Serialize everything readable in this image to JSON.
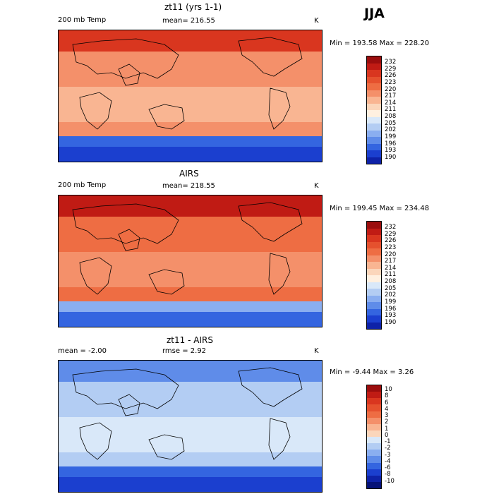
{
  "season": "JJA",
  "panels": [
    {
      "title": "zt11 (yrs 1-1)",
      "left_label": "200 mb Temp",
      "center_label": "mean= 216.55",
      "unit": "K",
      "minmax": "Min = 193.58 Max = 228.20",
      "colorbar": {
        "labels": [
          "232",
          "229",
          "226",
          "223",
          "220",
          "217",
          "214",
          "211",
          "208",
          "205",
          "202",
          "199",
          "196",
          "193",
          "190"
        ],
        "colors": [
          "#9b0d0d",
          "#c01b14",
          "#d9361f",
          "#e5512e",
          "#ee6d43",
          "#f4906a",
          "#f9b592",
          "#fbd6bb",
          "#fff0e0",
          "#d9e8f9",
          "#b3cdf3",
          "#8aaef0",
          "#5f8ce9",
          "#3465e0",
          "#1b3fcf",
          "#0e22a8"
        ]
      },
      "map_colors": {
        "high": "#d9361f",
        "mid": "#f4906a",
        "low": "#f9b592",
        "pole": "#3465e0",
        "edge": "#1b3fcf"
      }
    },
    {
      "title": "AIRS",
      "left_label": "200 mb Temp",
      "center_label": "mean= 218.55",
      "unit": "K",
      "minmax": "Min = 199.45 Max = 234.48",
      "colorbar": {
        "labels": [
          "232",
          "229",
          "226",
          "223",
          "220",
          "217",
          "214",
          "211",
          "208",
          "205",
          "202",
          "199",
          "196",
          "193",
          "190"
        ],
        "colors": [
          "#9b0d0d",
          "#c01b14",
          "#d9361f",
          "#e5512e",
          "#ee6d43",
          "#f4906a",
          "#f9b592",
          "#fbd6bb",
          "#fff0e0",
          "#d9e8f9",
          "#b3cdf3",
          "#8aaef0",
          "#5f8ce9",
          "#3465e0",
          "#1b3fcf",
          "#0e22a8"
        ]
      },
      "map_colors": {
        "high": "#c01b14",
        "mid": "#ee6d43",
        "low": "#f4906a",
        "pole": "#8aaef0",
        "edge": "#3465e0"
      }
    },
    {
      "title": "zt11 - AIRS",
      "left_label": "mean =  -2.00",
      "center_label": "rmse =   2.92",
      "unit": "K",
      "minmax": "Min =  -9.44 Max =   3.26",
      "colorbar": {
        "labels": [
          "10",
          "8",
          "6",
          "4",
          "3",
          "2",
          "1",
          "0",
          "-1",
          "-2",
          "-3",
          "-4",
          "-6",
          "-8",
          "-10"
        ],
        "colors": [
          "#9b0d0d",
          "#c01b14",
          "#d9361f",
          "#e5512e",
          "#ee6d43",
          "#f4906a",
          "#f9b592",
          "#fbd6bb",
          "#d9e8f9",
          "#b3cdf3",
          "#8aaef0",
          "#5f8ce9",
          "#3465e0",
          "#1b3fcf",
          "#0e22a8",
          "#061277"
        ]
      },
      "map_colors": {
        "high": "#5f8ce9",
        "mid": "#b3cdf3",
        "low": "#d9e8f9",
        "pole": "#3465e0",
        "edge": "#1b3fcf"
      }
    }
  ]
}
